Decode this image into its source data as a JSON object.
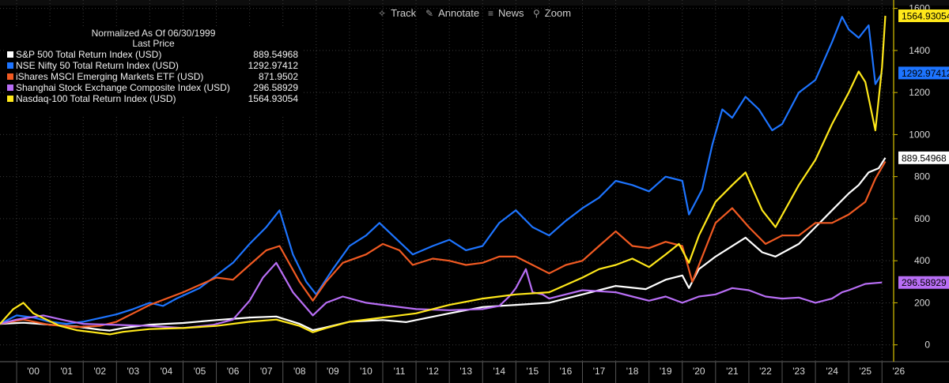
{
  "toolbar": {
    "track_label": "Track",
    "annotate_label": "Annotate",
    "news_label": "News",
    "zoom_label": "Zoom"
  },
  "legend": {
    "title": "Normalized As Of 06/30/1999",
    "subtitle": "Last Price"
  },
  "colors": {
    "background": "#000000",
    "grid": "#3a3a3a",
    "axis": "#d9c200",
    "tick_text": "#d8d8d8"
  },
  "chart_data": {
    "type": "line",
    "title": "",
    "xlabel": "",
    "ylabel": "",
    "x_tick_labels": [
      "'00",
      "'01",
      "'02",
      "'03",
      "'04",
      "'05",
      "'06",
      "'07",
      "'08",
      "'09",
      "'10",
      "'11",
      "'12",
      "'13",
      "'14",
      "'15",
      "'16",
      "'17",
      "'18",
      "'19",
      "'20",
      "'21",
      "'22",
      "'23",
      "'24",
      "'25",
      "'26"
    ],
    "y_ticks": [
      0,
      200,
      400,
      600,
      800,
      1000,
      1200,
      1400,
      1600
    ],
    "y_tick_labels": [
      "0",
      "200",
      "400",
      "600",
      "800",
      "1000",
      "1200",
      "1400",
      "1600"
    ],
    "xlim": [
      1999.5,
      2026.35
    ],
    "ylim": [
      -80,
      1640
    ],
    "grid": true,
    "legend_position": "top-left",
    "series": [
      {
        "name": "S&P 500 Total Return Index (USD)",
        "last_price": "889.54968",
        "color": "#ffffff",
        "x": [
          1999.5,
          2000.2,
          2000.7,
          2001.3,
          2001.8,
          2002.5,
          2002.8,
          2003.2,
          2004.0,
          2005.0,
          2006.0,
          2007.0,
          2007.8,
          2008.5,
          2008.9,
          2009.2,
          2010.0,
          2011.0,
          2011.7,
          2012.0,
          2013.0,
          2014.0,
          2015.0,
          2016.0,
          2017.0,
          2018.0,
          2018.9,
          2019.5,
          2020.0,
          2020.2,
          2020.5,
          2021.0,
          2021.9,
          2022.4,
          2022.8,
          2023.5,
          2024.0,
          2024.5,
          2025.0,
          2025.3,
          2025.6,
          2025.9,
          2026.1
        ],
        "y": [
          100,
          105,
          100,
          92,
          87,
          72,
          68,
          80,
          96,
          104,
          118,
          130,
          135,
          100,
          70,
          80,
          110,
          118,
          108,
          118,
          150,
          180,
          190,
          200,
          240,
          280,
          265,
          310,
          330,
          270,
          360,
          420,
          510,
          440,
          420,
          480,
          560,
          640,
          720,
          760,
          820,
          840,
          889.55
        ]
      },
      {
        "name": "NSE Nifty 50 Total Return Index (USD)",
        "last_price": "1292.97412",
        "color": "#1d74ff",
        "x": [
          1999.5,
          2000.0,
          2000.5,
          2001.0,
          2001.5,
          2002.0,
          2003.0,
          2003.5,
          2004.0,
          2004.4,
          2004.8,
          2005.5,
          2006.0,
          2006.5,
          2007.0,
          2007.5,
          2007.9,
          2008.3,
          2008.7,
          2009.0,
          2009.5,
          2010.0,
          2010.5,
          2010.9,
          2011.5,
          2011.9,
          2012.5,
          2013.0,
          2013.5,
          2014.0,
          2014.5,
          2015.0,
          2015.5,
          2016.0,
          2016.5,
          2017.0,
          2017.5,
          2018.0,
          2018.5,
          2019.0,
          2019.5,
          2020.0,
          2020.2,
          2020.6,
          2020.9,
          2021.2,
          2021.5,
          2021.9,
          2022.3,
          2022.7,
          2023.0,
          2023.5,
          2024.0,
          2024.5,
          2024.8,
          2025.0,
          2025.3,
          2025.6,
          2025.8,
          2026.0
        ],
        "y": [
          100,
          140,
          130,
          110,
          100,
          110,
          145,
          170,
          200,
          185,
          220,
          270,
          330,
          390,
          480,
          560,
          640,
          430,
          300,
          240,
          360,
          470,
          520,
          580,
          490,
          430,
          470,
          500,
          450,
          470,
          580,
          640,
          560,
          520,
          590,
          650,
          700,
          780,
          760,
          730,
          800,
          780,
          620,
          740,
          950,
          1120,
          1080,
          1180,
          1120,
          1020,
          1050,
          1200,
          1260,
          1440,
          1560,
          1500,
          1460,
          1520,
          1240,
          1292.97
        ]
      },
      {
        "name": "iShares MSCI Emerging Markets ETF (USD)",
        "last_price": "871.9502",
        "color": "#f15a22",
        "x": [
          1999.5,
          2000.2,
          2001.0,
          2001.8,
          2002.5,
          2003.0,
          2003.5,
          2004.0,
          2005.0,
          2006.0,
          2006.5,
          2007.0,
          2007.5,
          2007.9,
          2008.5,
          2008.9,
          2009.3,
          2009.8,
          2010.5,
          2011.0,
          2011.5,
          2011.9,
          2012.5,
          2013.0,
          2013.5,
          2014.0,
          2014.5,
          2015.0,
          2015.5,
          2016.0,
          2016.5,
          2017.0,
          2017.5,
          2018.0,
          2018.5,
          2019.0,
          2019.5,
          2020.0,
          2020.3,
          2020.6,
          2021.0,
          2021.5,
          2022.0,
          2022.5,
          2023.0,
          2023.5,
          2024.0,
          2024.5,
          2025.0,
          2025.5,
          2025.8,
          2026.1
        ],
        "y": [
          100,
          120,
          95,
          85,
          90,
          110,
          150,
          190,
          250,
          320,
          310,
          380,
          450,
          470,
          300,
          210,
          300,
          390,
          430,
          480,
          450,
          380,
          410,
          400,
          380,
          390,
          420,
          420,
          380,
          340,
          380,
          400,
          470,
          540,
          470,
          460,
          490,
          470,
          300,
          420,
          580,
          650,
          560,
          480,
          520,
          520,
          580,
          580,
          620,
          680,
          790,
          871.95
        ]
      },
      {
        "name": "Shanghai Stock Exchange Composite Index (USD)",
        "last_price": "296.58929",
        "color": "#b86ef5",
        "x": [
          1999.5,
          2000.0,
          2000.8,
          2001.5,
          2002.0,
          2003.0,
          2004.0,
          2005.0,
          2005.9,
          2006.5,
          2007.0,
          2007.4,
          2007.8,
          2008.3,
          2008.9,
          2009.3,
          2009.8,
          2010.5,
          2011.0,
          2012.0,
          2013.0,
          2014.0,
          2014.5,
          2014.8,
          2015.0,
          2015.3,
          2015.5,
          2015.8,
          2016.0,
          2017.0,
          2018.0,
          2018.5,
          2019.0,
          2019.5,
          2020.0,
          2020.5,
          2021.0,
          2021.5,
          2022.0,
          2022.5,
          2023.0,
          2023.5,
          2024.0,
          2024.5,
          2024.8,
          2025.0,
          2025.5,
          2026.0
        ],
        "y": [
          100,
          120,
          140,
          115,
          100,
          95,
          90,
          80,
          95,
          120,
          210,
          320,
          390,
          250,
          140,
          200,
          230,
          200,
          190,
          170,
          165,
          170,
          185,
          230,
          270,
          360,
          250,
          240,
          220,
          260,
          250,
          230,
          210,
          230,
          200,
          230,
          240,
          270,
          260,
          230,
          220,
          225,
          200,
          220,
          250,
          260,
          290,
          296.59
        ]
      },
      {
        "name": "Nasdaq-100 Total Return Index (USD)",
        "last_price": "1564.93054",
        "color": "#ffe81a",
        "x": [
          1999.5,
          1999.9,
          2000.2,
          2000.5,
          2000.9,
          2001.3,
          2001.8,
          2002.3,
          2002.8,
          2003.2,
          2004.0,
          2005.0,
          2006.0,
          2007.0,
          2007.8,
          2008.5,
          2008.9,
          2009.3,
          2010.0,
          2011.0,
          2012.0,
          2013.0,
          2014.0,
          2015.0,
          2016.0,
          2017.0,
          2017.5,
          2018.0,
          2018.5,
          2019.0,
          2019.5,
          2019.9,
          2020.2,
          2020.5,
          2021.0,
          2021.5,
          2021.9,
          2022.4,
          2022.8,
          2023.5,
          2024.0,
          2024.5,
          2025.0,
          2025.3,
          2025.5,
          2025.8,
          2026.0,
          2026.1
        ],
        "y": [
          100,
          170,
          200,
          150,
          120,
          90,
          70,
          60,
          50,
          62,
          75,
          80,
          90,
          110,
          120,
          90,
          60,
          80,
          110,
          130,
          150,
          190,
          220,
          240,
          250,
          320,
          360,
          380,
          410,
          370,
          430,
          480,
          390,
          520,
          680,
          760,
          820,
          640,
          560,
          760,
          880,
          1050,
          1200,
          1300,
          1250,
          1020,
          1320,
          1564.93
        ]
      }
    ]
  }
}
